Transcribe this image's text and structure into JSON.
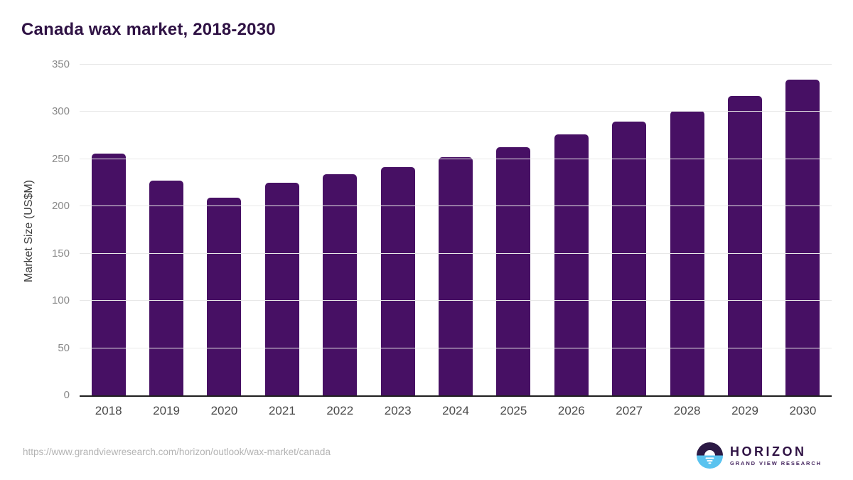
{
  "title": "Canada wax market, 2018-2030",
  "chart_data": {
    "type": "bar",
    "title": "Canada wax market, 2018-2030",
    "categories": [
      "2018",
      "2019",
      "2020",
      "2021",
      "2022",
      "2023",
      "2024",
      "2025",
      "2026",
      "2027",
      "2028",
      "2029",
      "2030"
    ],
    "values": [
      256,
      227,
      209,
      225,
      234,
      242,
      252,
      263,
      276,
      290,
      301,
      317,
      334
    ],
    "xlabel": "",
    "ylabel": "Market Size (US$M)",
    "ylim": [
      0,
      350
    ],
    "yticks": [
      0,
      50,
      100,
      150,
      200,
      250,
      300,
      350
    ],
    "bar_color": "#471064",
    "grid": true,
    "legend": "none"
  },
  "colors": {
    "title_text": "#2f1244",
    "bar": "#471064",
    "gridline": "#e8e8e8",
    "axis_line": "#1f1f1f",
    "tick_text": "#8a8a8a",
    "x_label_text": "#4a4a4a",
    "url_text": "#b3b3b3",
    "logo_dark": "#2c1a45",
    "logo_blue": "#5ac3ef"
  },
  "footer": {
    "source_url": "https://www.grandviewresearch.com/horizon/outlook/wax-market/canada",
    "logo": {
      "name": "HORIZON",
      "subtitle": "GRAND VIEW RESEARCH"
    }
  }
}
